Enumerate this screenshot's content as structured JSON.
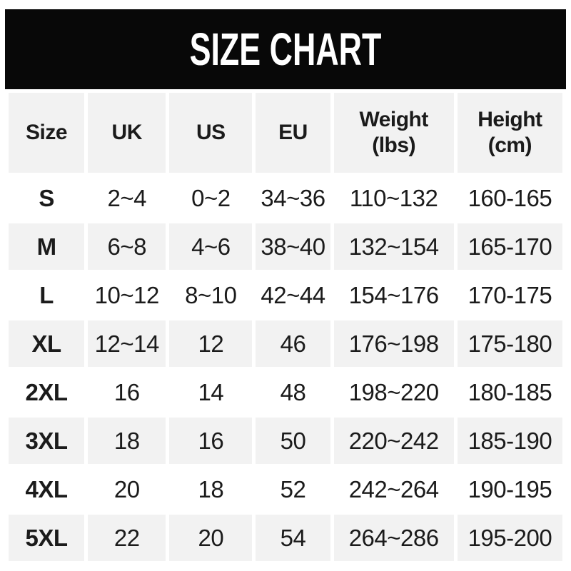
{
  "title": "SIZE CHART",
  "colors": {
    "page_bg": "#ffffff",
    "banner_bg": "#080808",
    "banner_text": "#ffffff",
    "alt_row_bg": "#f2f2f2",
    "text": "#1b1b1b"
  },
  "table": {
    "headers": [
      {
        "line1": "Size",
        "line2": ""
      },
      {
        "line1": "UK",
        "line2": ""
      },
      {
        "line1": "US",
        "line2": ""
      },
      {
        "line1": "EU",
        "line2": ""
      },
      {
        "line1": "Weight",
        "line2": "(lbs)"
      },
      {
        "line1": "Height",
        "line2": "(cm)"
      }
    ],
    "rows": [
      {
        "size": "S",
        "uk": "2~4",
        "us": "0~2",
        "eu": "34~36",
        "weight": "110~132",
        "height": "160-165"
      },
      {
        "size": "M",
        "uk": "6~8",
        "us": "4~6",
        "eu": "38~40",
        "weight": "132~154",
        "height": "165-170"
      },
      {
        "size": "L",
        "uk": "10~12",
        "us": "8~10",
        "eu": "42~44",
        "weight": "154~176",
        "height": "170-175"
      },
      {
        "size": "XL",
        "uk": "12~14",
        "us": "12",
        "eu": "46",
        "weight": "176~198",
        "height": "175-180"
      },
      {
        "size": "2XL",
        "uk": "16",
        "us": "14",
        "eu": "48",
        "weight": "198~220",
        "height": "180-185"
      },
      {
        "size": "3XL",
        "uk": "18",
        "us": "16",
        "eu": "50",
        "weight": "220~242",
        "height": "185-190"
      },
      {
        "size": "4XL",
        "uk": "20",
        "us": "18",
        "eu": "52",
        "weight": "242~264",
        "height": "190-195"
      },
      {
        "size": "5XL",
        "uk": "22",
        "us": "20",
        "eu": "54",
        "weight": "264~286",
        "height": "195-200"
      }
    ]
  },
  "chart_data": {
    "type": "table",
    "title": "SIZE CHART",
    "columns": [
      "Size",
      "UK",
      "US",
      "EU",
      "Weight (lbs)",
      "Height (cm)"
    ],
    "rows": [
      [
        "S",
        "2~4",
        "0~2",
        "34~36",
        "110~132",
        "160-165"
      ],
      [
        "M",
        "6~8",
        "4~6",
        "38~40",
        "132~154",
        "165-170"
      ],
      [
        "L",
        "10~12",
        "8~10",
        "42~44",
        "154~176",
        "170-175"
      ],
      [
        "XL",
        "12~14",
        "12",
        "46",
        "176~198",
        "175-180"
      ],
      [
        "2XL",
        "16",
        "14",
        "48",
        "198~220",
        "180-185"
      ],
      [
        "3XL",
        "18",
        "16",
        "50",
        "220~242",
        "185-190"
      ],
      [
        "4XL",
        "20",
        "18",
        "52",
        "242~264",
        "190-195"
      ],
      [
        "5XL",
        "22",
        "20",
        "54",
        "264~286",
        "195-200"
      ]
    ]
  }
}
